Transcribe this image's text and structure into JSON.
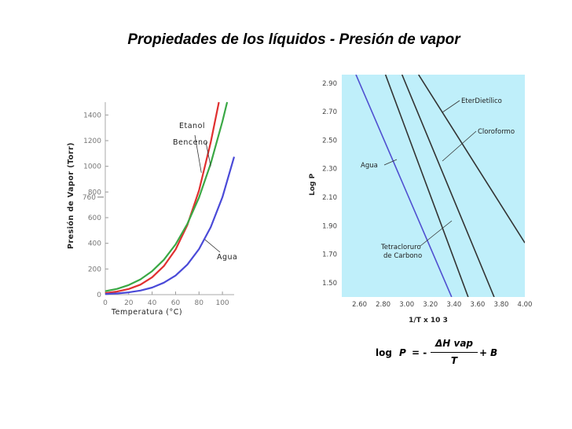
{
  "title": "Propiedades de los líquidos - Presión de vapor",
  "equation": {
    "log": "log",
    "p": "P",
    "equals": "= -",
    "numerator": "ΔH vap",
    "denominator": "T",
    "plus": "+",
    "b": "B"
  },
  "chart_data": [
    {
      "type": "line",
      "xlabel": "Temperatura (°C)",
      "ylabel": "Presión de Vapor (Torr)",
      "xlim": [
        0,
        110
      ],
      "ylim": [
        0,
        1500
      ],
      "x_ticks": [
        0,
        20,
        40,
        60,
        80,
        100
      ],
      "y_ticks": [
        0,
        200,
        400,
        600,
        800,
        1000,
        1200,
        1400
      ],
      "y_extra_ticks": [
        {
          "value": 760,
          "label": "760"
        }
      ],
      "series": [
        {
          "name": "Etanol",
          "color": "#e03030",
          "points": [
            [
              0,
              12
            ],
            [
              10,
              24
            ],
            [
              20,
              44
            ],
            [
              30,
              78
            ],
            [
              40,
              135
            ],
            [
              50,
              222
            ],
            [
              60,
              352
            ],
            [
              70,
              542
            ],
            [
              80,
              812
            ],
            [
              90,
              1187
            ],
            [
              97,
              1500
            ]
          ]
        },
        {
          "name": "Benceno",
          "color": "#3aa845",
          "points": [
            [
              0,
              27
            ],
            [
              10,
              45
            ],
            [
              20,
              75
            ],
            [
              30,
              119
            ],
            [
              40,
              183
            ],
            [
              50,
              271
            ],
            [
              60,
              392
            ],
            [
              70,
              551
            ],
            [
              80,
              757
            ],
            [
              90,
              1021
            ],
            [
              100,
              1350
            ],
            [
              104,
              1500
            ]
          ]
        },
        {
          "name": "Agua",
          "color": "#4a4ad8",
          "points": [
            [
              0,
              4.6
            ],
            [
              10,
              9
            ],
            [
              20,
              17.5
            ],
            [
              30,
              32
            ],
            [
              40,
              55
            ],
            [
              50,
              93
            ],
            [
              60,
              149
            ],
            [
              70,
              234
            ],
            [
              80,
              355
            ],
            [
              90,
              526
            ],
            [
              100,
              760
            ],
            [
              110,
              1074
            ]
          ]
        }
      ]
    },
    {
      "type": "line",
      "xlabel": "1/T x 10 3",
      "ylabel": "Log P",
      "xlim": [
        2.45,
        4.0
      ],
      "ylim": [
        1.4,
        2.96
      ],
      "x_ticks": [
        2.6,
        2.8,
        3.0,
        3.2,
        3.4,
        3.6,
        3.8,
        4.0
      ],
      "y_ticks": [
        1.5,
        1.7,
        1.9,
        2.1,
        2.3,
        2.5,
        2.7,
        2.9
      ],
      "background": "#bfeffa",
      "series": [
        {
          "name": "Agua",
          "color": "#5050d0",
          "points": [
            [
              2.57,
              2.96
            ],
            [
              3.38,
              1.4
            ]
          ]
        },
        {
          "name": "Tetracloruro de Carbono",
          "color": "#333333",
          "points": [
            [
              2.82,
              2.96
            ],
            [
              3.52,
              1.4
            ]
          ]
        },
        {
          "name": "Cloroformo",
          "color": "#333333",
          "points": [
            [
              2.96,
              2.96
            ],
            [
              3.74,
              1.4
            ]
          ]
        },
        {
          "name": "EterDietílico",
          "color": "#333333",
          "points": [
            [
              3.1,
              2.96
            ],
            [
              4.0,
              1.78
            ]
          ]
        }
      ]
    }
  ]
}
